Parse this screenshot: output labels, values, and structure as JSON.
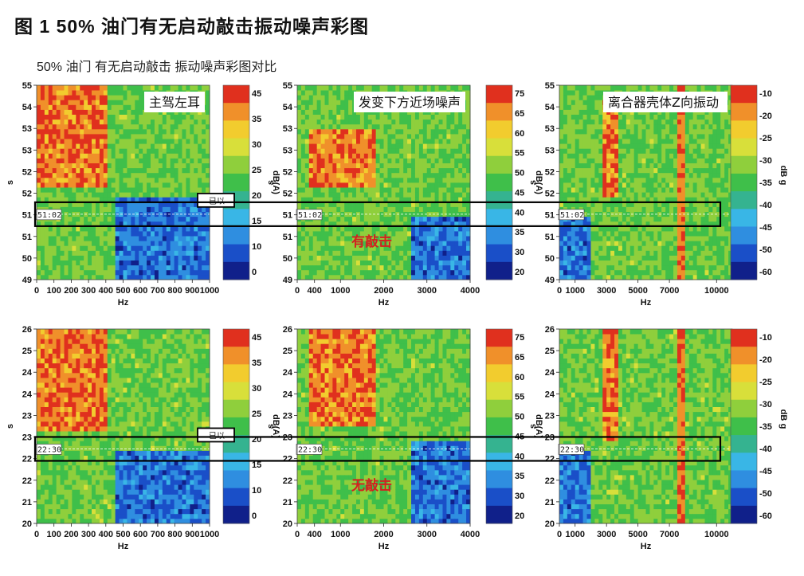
{
  "figure": {
    "title": "图 1   50% 油门有无启动敲击振动噪声彩图",
    "subtitle": "50% 油门 有无启动敲击 振动噪声彩图对比"
  },
  "colors": {
    "colormap": [
      "#10208a",
      "#1a4fc8",
      "#2f8ee0",
      "#39b6e6",
      "#35b390",
      "#3fbf4a",
      "#8fcf3c",
      "#d8df3a",
      "#f2cc2e",
      "#f0902a",
      "#e0301e"
    ],
    "highlight_box": "#000000",
    "annotation_text": "#d32020"
  },
  "chart_data": [
    {
      "type": "heatmap",
      "row": "有敲击",
      "col": 0,
      "label": "主驾左耳",
      "ylabel": "s",
      "xlabel": "Hz",
      "x_ticks": [
        "0",
        "100",
        "200",
        "300",
        "400",
        "500",
        "600",
        "700",
        "800",
        "900",
        "1000"
      ],
      "xlim": [
        0,
        1000
      ],
      "y_ticks": [
        "49",
        "50",
        "51",
        "51",
        "52",
        "52",
        "53",
        "53",
        "54",
        "55"
      ],
      "ylim": [
        49,
        55
      ],
      "colorbar": {
        "label": "dB(A)",
        "ticks": [
          "45",
          "35",
          "30",
          "25",
          "20",
          "15",
          "10",
          "0"
        ]
      },
      "cursor_label": "51:02",
      "cursor_time": 51.02,
      "cursor_tag": "已以",
      "annotation": "",
      "hot_band": [
        0,
        400
      ],
      "hot_time": [
        51.8,
        55
      ],
      "cold_band": [
        450,
        1000
      ],
      "cold_time": [
        49,
        51.6
      ]
    },
    {
      "type": "heatmap",
      "row": "有敲击",
      "col": 1,
      "label": "发变下方近场噪声",
      "ylabel": "s",
      "xlabel": "Hz",
      "x_ticks": [
        "0",
        "400",
        "1000",
        "2000",
        "3000",
        "4000"
      ],
      "xlim": [
        0,
        4000
      ],
      "y_ticks": [
        "49",
        "50",
        "51",
        "51",
        "52",
        "52",
        "53",
        "53",
        "54",
        "55"
      ],
      "ylim": [
        49,
        55
      ],
      "colorbar": {
        "label": "dB(A)",
        "ticks": [
          "75",
          "65",
          "60",
          "55",
          "50",
          "45",
          "40",
          "35",
          "30",
          "20"
        ]
      },
      "cursor_label": "51:02",
      "cursor_time": 51.02,
      "cursor_tag": "",
      "annotation": "有敲击",
      "hot_band": [
        300,
        1800
      ],
      "hot_time": [
        51.8,
        53.6
      ],
      "cold_band": [
        2600,
        4000
      ],
      "cold_time": [
        49,
        51
      ]
    },
    {
      "type": "heatmap",
      "row": "有敲击",
      "col": 2,
      "label": "离合器壳体Z向振动",
      "ylabel": "s",
      "xlabel": "Hz",
      "x_ticks": [
        "0",
        "1000",
        "3000",
        "5000",
        "7000",
        "10000"
      ],
      "xlim": [
        0,
        11000
      ],
      "y_ticks": [
        "49",
        "50",
        "51",
        "51",
        "52",
        "52",
        "53",
        "53",
        "54",
        "55"
      ],
      "ylim": [
        49,
        55
      ],
      "colorbar": {
        "label": "g",
        "unit_label": "dB",
        "ticks": [
          "-10",
          "-20",
          "-25",
          "-30",
          "-35",
          "-40",
          "-45",
          "-50",
          "-60"
        ]
      },
      "cursor_label": "51:02",
      "cursor_time": 51.02,
      "cursor_tag": "",
      "annotation": "",
      "hot_band": [
        2800,
        3800
      ],
      "hot_time": [
        51.5,
        54.5
      ],
      "cold_band": [
        0,
        2000
      ],
      "cold_time": [
        49,
        51
      ]
    },
    {
      "type": "heatmap",
      "row": "无敲击",
      "col": 0,
      "label": "",
      "ylabel": "s",
      "xlabel": "Hz",
      "x_ticks": [
        "0",
        "100",
        "200",
        "300",
        "400",
        "500",
        "600",
        "700",
        "800",
        "900",
        "1000"
      ],
      "xlim": [
        0,
        1000
      ],
      "y_ticks": [
        "20",
        "21",
        "22",
        "22",
        "23",
        "23",
        "24",
        "24",
        "25",
        "26"
      ],
      "ylim": [
        20,
        26
      ],
      "colorbar": {
        "label": "dB(A)",
        "ticks": [
          "45",
          "35",
          "30",
          "25",
          "20",
          "15",
          "10",
          "0"
        ]
      },
      "cursor_label": "22:30",
      "cursor_time": 22.3,
      "cursor_tag": "已以",
      "annotation": "",
      "hot_band": [
        0,
        400
      ],
      "hot_time": [
        22.8,
        26
      ],
      "cold_band": [
        450,
        1000
      ],
      "cold_time": [
        20,
        22.3
      ]
    },
    {
      "type": "heatmap",
      "row": "无敲击",
      "col": 1,
      "label": "",
      "ylabel": "s",
      "xlabel": "Hz",
      "x_ticks": [
        "0",
        "400",
        "1000",
        "2000",
        "3000",
        "4000"
      ],
      "xlim": [
        0,
        4000
      ],
      "y_ticks": [
        "20",
        "21",
        "22",
        "22",
        "23",
        "23",
        "24",
        "24",
        "25",
        "26"
      ],
      "ylim": [
        20,
        26
      ],
      "colorbar": {
        "label": "dB(A)",
        "ticks": [
          "75",
          "65",
          "60",
          "55",
          "50",
          "45",
          "40",
          "35",
          "30",
          "20"
        ]
      },
      "cursor_label": "22:30",
      "cursor_time": 22.3,
      "cursor_tag": "",
      "annotation": "无敲击",
      "hot_band": [
        300,
        1800
      ],
      "hot_time": [
        23,
        26
      ],
      "cold_band": [
        2600,
        4000
      ],
      "cold_time": [
        20,
        22.5
      ]
    },
    {
      "type": "heatmap",
      "row": "无敲击",
      "col": 2,
      "label": "",
      "ylabel": "s",
      "xlabel": "Hz",
      "x_ticks": [
        "0",
        "1000",
        "3000",
        "5000",
        "7000",
        "10000"
      ],
      "xlim": [
        0,
        11000
      ],
      "y_ticks": [
        "20",
        "21",
        "22",
        "22",
        "23",
        "23",
        "24",
        "24",
        "25",
        "26"
      ],
      "ylim": [
        20,
        26
      ],
      "colorbar": {
        "label": "g",
        "unit_label": "dB",
        "ticks": [
          "-10",
          "-20",
          "-25",
          "-30",
          "-35",
          "-40",
          "-45",
          "-50",
          "-60"
        ]
      },
      "cursor_label": "22:30",
      "cursor_time": 22.3,
      "cursor_tag": "",
      "annotation": "",
      "hot_band": [
        2800,
        3800
      ],
      "hot_time": [
        22.5,
        26
      ],
      "cold_band": [
        0,
        2000
      ],
      "cold_time": [
        20,
        22.3
      ]
    }
  ]
}
